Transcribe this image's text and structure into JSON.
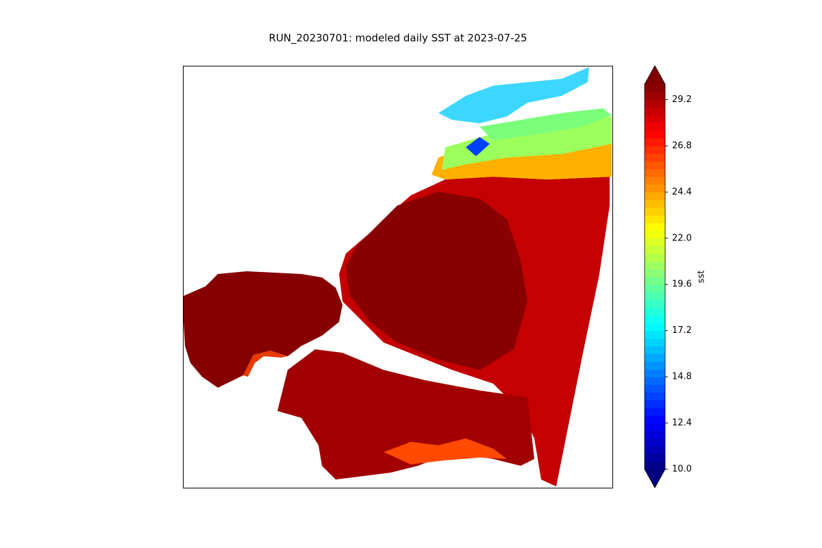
{
  "chart_data": {
    "type": "heatmap",
    "title": "RUN_20230701: modeled daily SST at 2023-07-25",
    "colorbar": {
      "label": "sst",
      "colormap": "jet",
      "clim": [
        10,
        30
      ],
      "extend": "both",
      "ticks": [
        {
          "value": 10,
          "label": "10.0"
        },
        {
          "value": 12.4,
          "label": "12.4"
        },
        {
          "value": 14.8,
          "label": "14.8"
        },
        {
          "value": 17.2,
          "label": "17.2"
        },
        {
          "value": 19.6,
          "label": "19.6"
        },
        {
          "value": 22,
          "label": "22.0"
        },
        {
          "value": 24.4,
          "label": "24.4"
        },
        {
          "value": 26.8,
          "label": "26.8"
        },
        {
          "value": 29.2,
          "label": "29.2"
        }
      ]
    }
  }
}
